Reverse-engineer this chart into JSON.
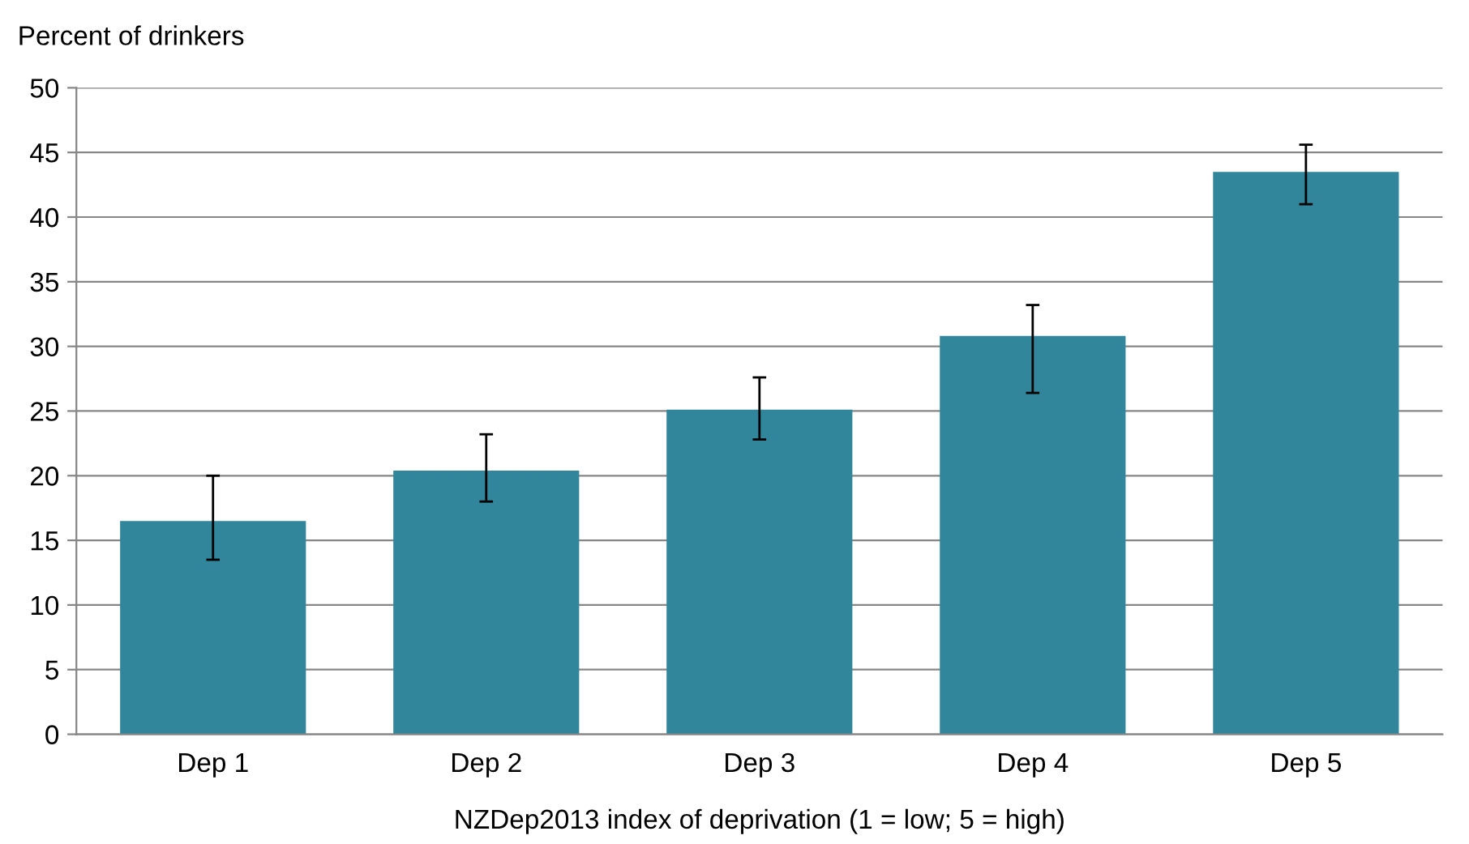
{
  "chart_data": {
    "type": "bar",
    "ylabel": "Percent of drinkers",
    "xlabel": "NZDep2013 index of deprivation (1 = low; 5 = high)",
    "categories": [
      "Dep 1",
      "Dep 2",
      "Dep 3",
      "Dep 4",
      "Dep 5"
    ],
    "values": [
      16.5,
      20.4,
      25.1,
      30.8,
      43.5
    ],
    "errors": [
      [
        13.5,
        20.0
      ],
      [
        18.0,
        23.2
      ],
      [
        22.8,
        27.6
      ],
      [
        26.4,
        33.2
      ],
      [
        41.0,
        45.6
      ]
    ],
    "color": "#31869b",
    "ylim": [
      0,
      50
    ],
    "yticks": [
      0,
      5,
      10,
      15,
      20,
      25,
      30,
      35,
      40,
      45,
      50
    ],
    "grid": "y"
  }
}
